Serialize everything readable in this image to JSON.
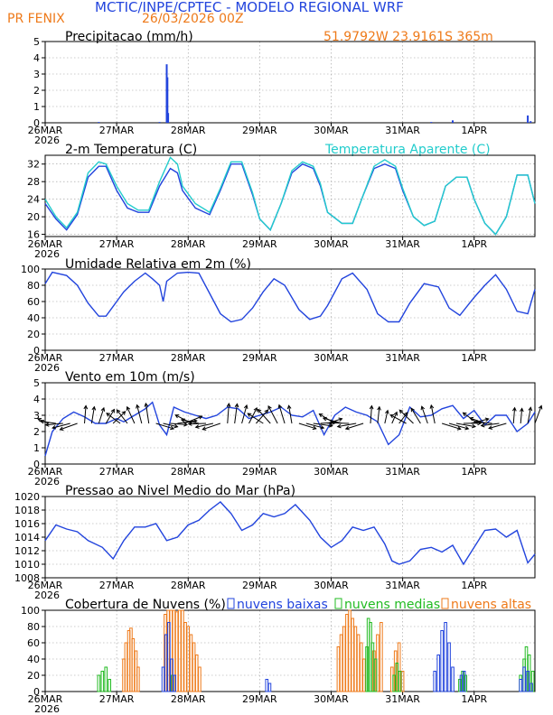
{
  "header": {
    "title": "MCTIC/INPE/CPTEC  -  MODELO REGIONAL WRF",
    "location": "PR FENIX",
    "run": "26/03/2026 00Z",
    "coords": "51.9792W  23.9161S  365m"
  },
  "colors": {
    "blue": "#2244dd",
    "cyan": "#22cccc",
    "orange": "#ee7a1a",
    "green": "#22bb22",
    "black": "#000000"
  },
  "x_axis": {
    "ticks": [
      "26MAR",
      "27MAR",
      "28MAR",
      "29MAR",
      "30MAR",
      "31MAR",
      "1APR"
    ],
    "year": "2026",
    "range_days": [
      0,
      6.85
    ]
  },
  "chart_data": [
    {
      "id": "precip",
      "type": "bar",
      "title": "Precipitacao (mm/h)",
      "ylim": [
        0,
        5
      ],
      "yticks": [
        0,
        1,
        2,
        3,
        4,
        5
      ],
      "series": [
        {
          "name": "Precipitacao",
          "color": "#2244dd",
          "x": [
            0.75,
            1.6,
            1.7,
            1.71,
            1.72,
            5.4,
            5.7,
            6.75,
            6.79
          ],
          "values": [
            0.05,
            0.05,
            3.6,
            2.8,
            0.6,
            0.05,
            0.15,
            0.45,
            0.1
          ]
        }
      ]
    },
    {
      "id": "temp",
      "type": "line",
      "title": "2-m Temperatura (C)",
      "legend": "Temperatura Aparente (C)",
      "ylim": [
        15.5,
        34
      ],
      "yticks": [
        16,
        20,
        24,
        28,
        32
      ],
      "series": [
        {
          "name": "Temperatura",
          "color": "#2244dd",
          "x": [
            0,
            0.15,
            0.3,
            0.45,
            0.6,
            0.75,
            0.85,
            1.0,
            1.15,
            1.3,
            1.45,
            1.6,
            1.75,
            1.85,
            1.92,
            2.1,
            2.3,
            2.45,
            2.6,
            2.75,
            2.9,
            3.0,
            3.15,
            3.3,
            3.45,
            3.6,
            3.75,
            3.85,
            3.95,
            4.15,
            4.3,
            4.45,
            4.6,
            4.75,
            4.9,
            5.0,
            5.15,
            5.3,
            5.45,
            5.6,
            5.75,
            5.9,
            6.0,
            6.15,
            6.3,
            6.45,
            6.6,
            6.75,
            6.85
          ],
          "values": [
            23,
            19.5,
            17,
            20.5,
            29,
            31.5,
            31.5,
            26,
            22,
            21,
            21,
            27,
            31,
            30,
            26,
            22,
            20.5,
            26,
            32,
            32,
            25,
            19.5,
            17,
            23,
            30,
            32,
            31,
            27,
            21,
            18.5,
            18.5,
            25,
            31,
            32,
            31,
            26,
            20,
            18,
            19,
            27,
            29,
            29,
            24,
            18.5,
            16,
            20,
            29.5,
            29.5,
            23
          ]
        },
        {
          "name": "Temperatura Aparente",
          "color": "#22cccc",
          "x": [
            0,
            0.15,
            0.3,
            0.45,
            0.6,
            0.75,
            0.85,
            1.0,
            1.15,
            1.3,
            1.45,
            1.6,
            1.75,
            1.85,
            1.92,
            2.1,
            2.3,
            2.45,
            2.6,
            2.75,
            2.9,
            3.0,
            3.15,
            3.3,
            3.45,
            3.6,
            3.75,
            3.85,
            3.95,
            4.15,
            4.3,
            4.45,
            4.6,
            4.75,
            4.9,
            5.0,
            5.15,
            5.3,
            5.45,
            5.6,
            5.75,
            5.9,
            6.0,
            6.15,
            6.3,
            6.45,
            6.6,
            6.75,
            6.85
          ],
          "values": [
            24,
            20,
            17.5,
            21,
            30,
            32.5,
            32,
            27,
            23,
            21.5,
            21.5,
            28,
            33.5,
            32,
            27,
            23,
            21,
            26.5,
            32.5,
            32.5,
            25.5,
            19.5,
            17,
            23,
            30.5,
            32.5,
            31.5,
            27.5,
            21,
            18.5,
            18.5,
            25,
            31.5,
            33,
            31.5,
            26.5,
            20,
            18,
            19,
            27,
            29,
            29,
            24,
            18.5,
            16,
            20,
            29.5,
            29.5,
            23
          ]
        }
      ]
    },
    {
      "id": "humidity",
      "type": "line",
      "title": "Umidade Relativa em 2m (%)",
      "ylim": [
        0,
        100
      ],
      "yticks": [
        0,
        20,
        40,
        60,
        80,
        100
      ],
      "series": [
        {
          "name": "Umidade",
          "color": "#2244dd",
          "x": [
            0,
            0.1,
            0.3,
            0.45,
            0.6,
            0.75,
            0.85,
            1.0,
            1.1,
            1.25,
            1.4,
            1.5,
            1.6,
            1.65,
            1.7,
            1.85,
            2.0,
            2.15,
            2.3,
            2.45,
            2.6,
            2.75,
            2.9,
            3.05,
            3.2,
            3.35,
            3.55,
            3.7,
            3.85,
            3.95,
            4.15,
            4.3,
            4.5,
            4.65,
            4.8,
            4.95,
            5.1,
            5.3,
            5.5,
            5.65,
            5.8,
            6.0,
            6.15,
            6.3,
            6.45,
            6.6,
            6.75,
            6.85
          ],
          "values": [
            82,
            96,
            92,
            80,
            58,
            42,
            42,
            60,
            72,
            85,
            95,
            88,
            80,
            60,
            85,
            95,
            96,
            95,
            70,
            45,
            35,
            38,
            52,
            72,
            88,
            80,
            50,
            38,
            42,
            55,
            88,
            95,
            75,
            45,
            35,
            35,
            58,
            82,
            78,
            52,
            43,
            65,
            80,
            93,
            75,
            48,
            45,
            75
          ]
        }
      ]
    },
    {
      "id": "wind",
      "type": "line",
      "title": "Vento em 10m (m/s)",
      "ylim": [
        0,
        5
      ],
      "yticks": [
        0,
        1,
        2,
        3,
        4,
        5
      ],
      "series": [
        {
          "name": "Vento",
          "color": "#2244dd",
          "x": [
            0,
            0.1,
            0.25,
            0.4,
            0.55,
            0.7,
            0.85,
            1.0,
            1.1,
            1.25,
            1.4,
            1.5,
            1.6,
            1.7,
            1.8,
            1.95,
            2.1,
            2.25,
            2.4,
            2.55,
            2.7,
            2.85,
            3.0,
            3.15,
            3.3,
            3.45,
            3.6,
            3.75,
            3.9,
            4.05,
            4.2,
            4.35,
            4.5,
            4.65,
            4.8,
            4.95,
            5.1,
            5.25,
            5.4,
            5.55,
            5.7,
            5.85,
            6.0,
            6.15,
            6.3,
            6.45,
            6.6,
            6.75,
            6.85
          ],
          "values": [
            0.5,
            2,
            2.8,
            3.2,
            2.9,
            2.5,
            2.5,
            2.8,
            2.6,
            3.0,
            3.4,
            3.8,
            2.4,
            1.8,
            3.5,
            3.2,
            3.0,
            2.8,
            3.0,
            3.5,
            3.4,
            2.8,
            3.0,
            3.2,
            3.5,
            3.0,
            2.9,
            3.3,
            1.8,
            3.0,
            3.5,
            3.2,
            3.0,
            2.6,
            1.2,
            1.8,
            3.5,
            2.9,
            3.0,
            3.4,
            3.6,
            2.8,
            3.3,
            2.4,
            3.0,
            3.0,
            2.0,
            2.5,
            3.2
          ]
        }
      ]
    },
    {
      "id": "pressure",
      "type": "line",
      "title": "Pressao ao Nivel Medio do Mar (hPa)",
      "ylim": [
        1008,
        1020
      ],
      "yticks": [
        1008,
        1010,
        1012,
        1014,
        1016,
        1018,
        1020
      ],
      "series": [
        {
          "name": "Pressao",
          "color": "#2244dd",
          "x": [
            0,
            0.15,
            0.3,
            0.45,
            0.6,
            0.8,
            0.95,
            1.1,
            1.25,
            1.4,
            1.55,
            1.7,
            1.85,
            2.0,
            2.15,
            2.3,
            2.45,
            2.6,
            2.75,
            2.9,
            3.05,
            3.2,
            3.35,
            3.5,
            3.7,
            3.85,
            4.0,
            4.15,
            4.3,
            4.45,
            4.6,
            4.75,
            4.85,
            4.95,
            5.1,
            5.25,
            5.4,
            5.55,
            5.7,
            5.85,
            6.0,
            6.15,
            6.3,
            6.45,
            6.6,
            6.75,
            6.85
          ],
          "values": [
            1013.5,
            1015.8,
            1015.2,
            1014.8,
            1013.5,
            1012.5,
            1010.8,
            1013.5,
            1015.5,
            1015.5,
            1016,
            1013.5,
            1014,
            1015.8,
            1016.5,
            1018,
            1019.2,
            1017.5,
            1015,
            1015.8,
            1017.5,
            1017,
            1017.5,
            1018.8,
            1016.5,
            1014,
            1012.5,
            1013.5,
            1015.5,
            1015,
            1015.5,
            1013,
            1010.5,
            1010,
            1010.5,
            1012.2,
            1012.5,
            1011.8,
            1012.8,
            1010,
            1012.5,
            1015,
            1015.2,
            1014,
            1015,
            1010.2,
            1011.5
          ]
        }
      ]
    },
    {
      "id": "clouds",
      "type": "bar",
      "title": "Cobertura de Nuvens (%)",
      "legend": [
        "nuvens baixas",
        "nuvens medias",
        "nuvens altas"
      ],
      "ylim": [
        0,
        100
      ],
      "yticks": [
        0,
        20,
        40,
        60,
        80,
        100
      ],
      "series": [
        {
          "name": "nuvens altas",
          "color": "#ee7a1a",
          "x": [
            1.1,
            1.13,
            1.17,
            1.2,
            1.23,
            1.27,
            1.3,
            1.68,
            1.72,
            1.76,
            1.8,
            1.84,
            1.88,
            1.92,
            1.96,
            2.0,
            2.04,
            2.08,
            2.12,
            2.16,
            4.1,
            4.14,
            4.18,
            4.22,
            4.26,
            4.3,
            4.34,
            4.38,
            4.42,
            4.46,
            4.6,
            4.65,
            4.7,
            4.85,
            4.9,
            4.95,
            5.0
          ],
          "values": [
            40,
            60,
            75,
            78,
            65,
            50,
            30,
            95,
            100,
            100,
            100,
            98,
            100,
            100,
            85,
            80,
            70,
            60,
            45,
            30,
            55,
            70,
            80,
            95,
            100,
            90,
            80,
            70,
            60,
            40,
            50,
            70,
            85,
            30,
            50,
            60,
            25
          ]
        },
        {
          "name": "nuvens medias",
          "color": "#22bb22",
          "x": [
            0.75,
            0.8,
            0.85,
            0.9,
            1.78,
            4.5,
            4.52,
            4.55,
            4.58,
            4.62,
            4.88,
            4.92,
            4.96,
            5.8,
            5.84,
            5.88,
            6.65,
            6.7,
            6.73,
            6.77,
            6.82
          ],
          "values": [
            20,
            25,
            30,
            15,
            20,
            55,
            90,
            85,
            60,
            40,
            20,
            35,
            25,
            15,
            25,
            20,
            20,
            40,
            55,
            45,
            25
          ]
        },
        {
          "name": "nuvens baixas",
          "color": "#2244dd",
          "x": [
            1.65,
            1.69,
            1.73,
            1.77,
            1.81,
            3.1,
            3.14,
            5.45,
            5.5,
            5.55,
            5.6,
            5.65,
            5.7,
            5.82,
            5.86,
            6.65,
            6.7,
            6.75,
            6.8
          ],
          "values": [
            30,
            70,
            85,
            40,
            20,
            15,
            10,
            25,
            45,
            75,
            85,
            60,
            30,
            20,
            25,
            15,
            30,
            25,
            10
          ]
        }
      ]
    }
  ]
}
